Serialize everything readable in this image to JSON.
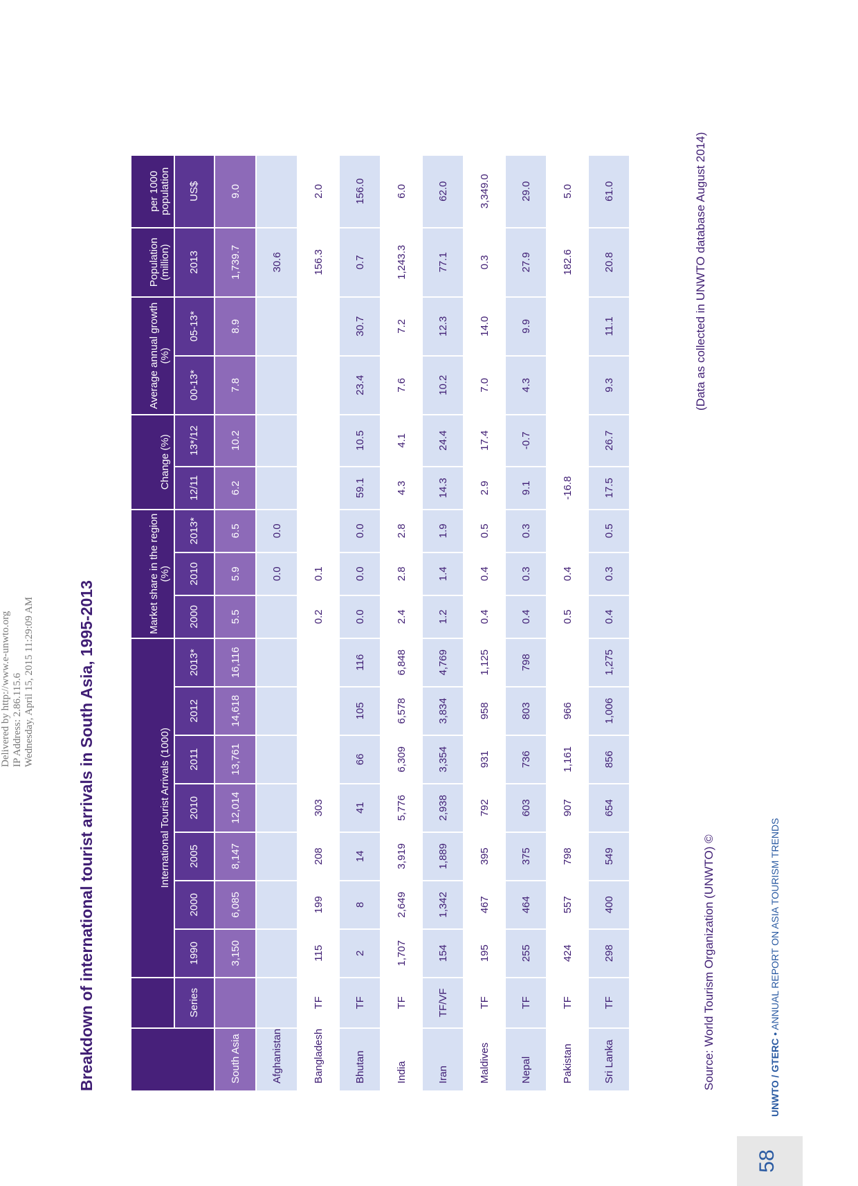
{
  "delivered": {
    "line1": "Delivered by http://www.e-unwto.org",
    "line2": "IP Address: 2.86.115.6",
    "line3": "Wednesday, April 15, 2015 11:29:09 AM"
  },
  "title": "Breakdown of international tourist arrivals in South Asia, 1995-2013",
  "table": {
    "group_headers": {
      "arrivals": "International Tourist Arrivals (1000)",
      "market_share": "Market share in the region (%)",
      "change": "Change (%)",
      "growth": "Average annual growth (%)",
      "population": "Population (million)",
      "per1000": "per 1000 population"
    },
    "sub_headers": {
      "series": "Series",
      "y1990": "1990",
      "y2000": "2000",
      "y2005": "2005",
      "y2010": "2010",
      "y2011": "2011",
      "y2012": "2012",
      "y2013": "2013*",
      "ms2000": "2000",
      "ms2010": "2010",
      "ms2013": "2013*",
      "ch1211": "12/11",
      "ch1312": "13*/12",
      "g0013": "00-13*",
      "g0513": "05-13*",
      "pop2013": "2013",
      "usd": "US$"
    },
    "rows": [
      {
        "name": "South Asia",
        "series": "",
        "a1990": "3,150",
        "a2000": "6,085",
        "a2005": "8,147",
        "a2010": "12,014",
        "a2011": "13,761",
        "a2012": "14,618",
        "a2013": "16,116",
        "ms2000": "5.5",
        "ms2010": "5.9",
        "ms2013": "6.5",
        "ch1211": "6.2",
        "ch1312": "10.2",
        "g0013": "7.8",
        "g0513": "8.9",
        "pop": "1,739.7",
        "usd": "9.0"
      },
      {
        "name": "Afghanistan",
        "series": "",
        "a1990": "",
        "a2000": "",
        "a2005": "",
        "a2010": "",
        "a2011": "",
        "a2012": "",
        "a2013": "",
        "ms2000": "",
        "ms2010": "0.0",
        "ms2013": "0.0",
        "ch1211": "",
        "ch1312": "",
        "g0013": "",
        "g0513": "",
        "pop": "30.6",
        "usd": ""
      },
      {
        "name": "Bangladesh",
        "series": "TF",
        "a1990": "115",
        "a2000": "199",
        "a2005": "208",
        "a2010": "303",
        "a2011": "",
        "a2012": "",
        "a2013": "",
        "ms2000": "0.2",
        "ms2010": "0.1",
        "ms2013": "",
        "ch1211": "",
        "ch1312": "",
        "g0013": "",
        "g0513": "",
        "pop": "156.3",
        "usd": "2.0"
      },
      {
        "name": "Bhutan",
        "series": "TF",
        "a1990": "2",
        "a2000": "8",
        "a2005": "14",
        "a2010": "41",
        "a2011": "66",
        "a2012": "105",
        "a2013": "116",
        "ms2000": "0.0",
        "ms2010": "0.0",
        "ms2013": "0.0",
        "ch1211": "59.1",
        "ch1312": "10.5",
        "g0013": "23.4",
        "g0513": "30.7",
        "pop": "0.7",
        "usd": "156.0"
      },
      {
        "name": "India",
        "series": "TF",
        "a1990": "1,707",
        "a2000": "2,649",
        "a2005": "3,919",
        "a2010": "5,776",
        "a2011": "6,309",
        "a2012": "6,578",
        "a2013": "6,848",
        "ms2000": "2.4",
        "ms2010": "2.8",
        "ms2013": "2.8",
        "ch1211": "4.3",
        "ch1312": "4.1",
        "g0013": "7.6",
        "g0513": "7.2",
        "pop": "1,243.3",
        "usd": "6.0"
      },
      {
        "name": "Iran",
        "series": "TF/VF",
        "a1990": "154",
        "a2000": "1,342",
        "a2005": "1,889",
        "a2010": "2,938",
        "a2011": "3,354",
        "a2012": "3,834",
        "a2013": "4,769",
        "ms2000": "1.2",
        "ms2010": "1.4",
        "ms2013": "1.9",
        "ch1211": "14.3",
        "ch1312": "24.4",
        "g0013": "10.2",
        "g0513": "12.3",
        "pop": "77.1",
        "usd": "62.0"
      },
      {
        "name": "Maldives",
        "series": "TF",
        "a1990": "195",
        "a2000": "467",
        "a2005": "395",
        "a2010": "792",
        "a2011": "931",
        "a2012": "958",
        "a2013": "1,125",
        "ms2000": "0.4",
        "ms2010": "0.4",
        "ms2013": "0.5",
        "ch1211": "2.9",
        "ch1312": "17.4",
        "g0013": "7.0",
        "g0513": "14.0",
        "pop": "0.3",
        "usd": "3,349.0"
      },
      {
        "name": "Nepal",
        "series": "TF",
        "a1990": "255",
        "a2000": "464",
        "a2005": "375",
        "a2010": "603",
        "a2011": "736",
        "a2012": "803",
        "a2013": "798",
        "ms2000": "0.4",
        "ms2010": "0.3",
        "ms2013": "0.3",
        "ch1211": "9.1",
        "ch1312": "-0.7",
        "g0013": "4.3",
        "g0513": "9.9",
        "pop": "27.9",
        "usd": "29.0"
      },
      {
        "name": "Pakistan",
        "series": "TF",
        "a1990": "424",
        "a2000": "557",
        "a2005": "798",
        "a2010": "907",
        "a2011": "1,161",
        "a2012": "966",
        "a2013": "",
        "ms2000": "0.5",
        "ms2010": "0.4",
        "ms2013": "",
        "ch1211": "-16.8",
        "ch1312": "",
        "g0013": "",
        "g0513": "",
        "pop": "182.6",
        "usd": "5.0"
      },
      {
        "name": "Sri Lanka",
        "series": "TF",
        "a1990": "298",
        "a2000": "400",
        "a2005": "549",
        "a2010": "654",
        "a2011": "856",
        "a2012": "1,006",
        "a2013": "1,275",
        "ms2000": "0.4",
        "ms2010": "0.3",
        "ms2013": "0.5",
        "ch1211": "17.5",
        "ch1312": "26.7",
        "g0013": "9.3",
        "g0513": "11.1",
        "pop": "20.8",
        "usd": "61.0"
      }
    ]
  },
  "source": "Source: World Tourism Organization (UNWTO) ©",
  "note": "(Data as collected in UNWTO database August 2014)",
  "footer": {
    "page_number": "58",
    "publisher": "UNWTO / GTERC",
    "bullet": " • ",
    "report_title": "ANNUAL REPORT ON ASIA TOURISM TRENDS"
  },
  "colors": {
    "header_dark": "#47207a",
    "region_row": "#8d6ab8",
    "shade_row": "#d7e0f3",
    "text": "#3f1d73",
    "footer_blue": "#2a5aa2"
  }
}
